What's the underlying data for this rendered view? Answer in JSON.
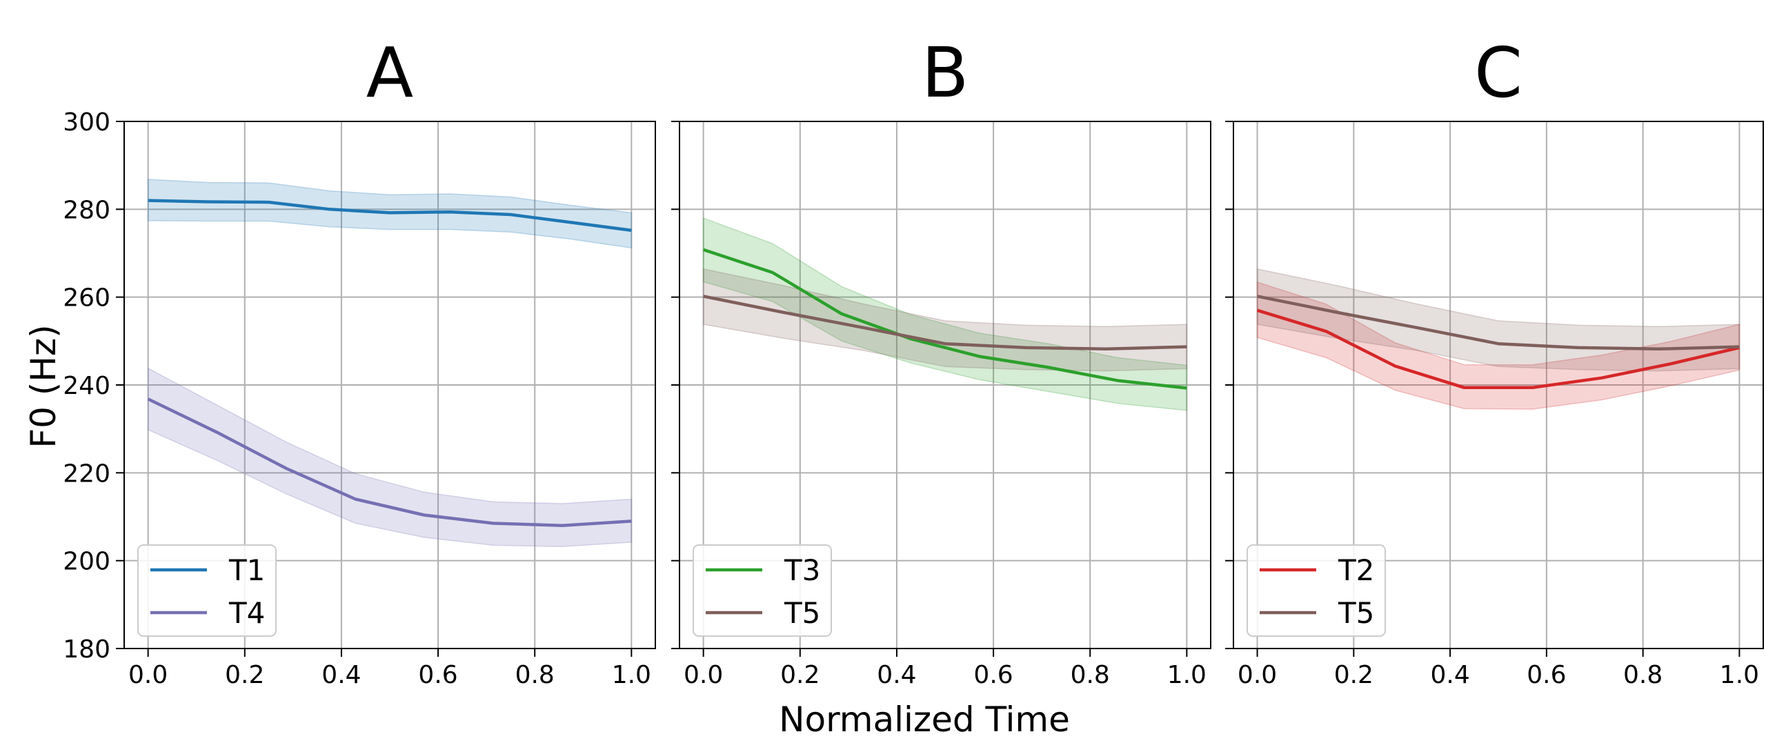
{
  "figure": {
    "xlabel": "Normalized Time",
    "ylabel": "F0 (Hz)"
  },
  "chart_data": [
    {
      "type": "line",
      "title": "A",
      "xlim": [
        0.0,
        1.0
      ],
      "ylim": [
        180,
        300
      ],
      "xticks": [
        "0.0",
        "0.2",
        "0.4",
        "0.6",
        "0.8",
        "1.0"
      ],
      "yticks": [
        "180",
        "200",
        "220",
        "240",
        "260",
        "280",
        "300"
      ],
      "grid": true,
      "legend_position": "lower-left",
      "series": [
        {
          "name": "T1",
          "color": "#1f77b4",
          "x": [
            0.0,
            0.125,
            0.25,
            0.375,
            0.5,
            0.625,
            0.75,
            0.875,
            1.0
          ],
          "y": [
            282.0,
            281.7,
            281.6,
            280.0,
            279.2,
            279.4,
            278.8,
            277.0,
            275.2
          ],
          "lower": [
            277.4,
            277.3,
            277.3,
            276.0,
            275.4,
            275.4,
            274.8,
            273.2,
            271.2
          ],
          "upper": [
            286.8,
            286.1,
            286.0,
            284.2,
            283.3,
            283.5,
            282.8,
            280.9,
            279.2
          ]
        },
        {
          "name": "T4",
          "color": "#7570b3",
          "x": [
            0.0,
            0.143,
            0.286,
            0.429,
            0.571,
            0.714,
            0.857,
            1.0
          ],
          "y": [
            236.8,
            229.2,
            221.0,
            214.0,
            210.4,
            208.5,
            208.0,
            209.0
          ],
          "lower": [
            229.8,
            222.8,
            215.2,
            208.5,
            205.3,
            203.5,
            203.2,
            204.2
          ],
          "upper": [
            243.8,
            235.4,
            227.0,
            219.8,
            215.6,
            213.4,
            213.0,
            214.0
          ]
        }
      ]
    },
    {
      "type": "line",
      "title": "B",
      "xlim": [
        0.0,
        1.0
      ],
      "ylim": [
        180,
        300
      ],
      "xticks": [
        "0.0",
        "0.2",
        "0.4",
        "0.6",
        "0.8",
        "1.0"
      ],
      "yticks": [],
      "grid": true,
      "legend_position": "lower-left",
      "series": [
        {
          "name": "T3",
          "color": "#2ca02c",
          "x": [
            0.0,
            0.143,
            0.286,
            0.429,
            0.571,
            0.714,
            0.857,
            1.0
          ],
          "y": [
            270.8,
            265.6,
            256.2,
            250.5,
            246.5,
            244.0,
            241.0,
            239.3
          ],
          "lower": [
            263.5,
            259.0,
            250.0,
            245.0,
            241.2,
            238.5,
            235.8,
            234.2
          ],
          "upper": [
            278.0,
            272.2,
            262.4,
            256.0,
            251.8,
            249.4,
            246.2,
            244.5
          ]
        },
        {
          "name": "T5",
          "color": "#7f5f5b",
          "x": [
            0.0,
            0.167,
            0.333,
            0.5,
            0.667,
            0.833,
            1.0
          ],
          "y": [
            260.2,
            256.5,
            253.0,
            249.4,
            248.5,
            248.2,
            248.7
          ],
          "lower": [
            253.8,
            250.6,
            247.8,
            244.2,
            243.5,
            243.2,
            243.7
          ],
          "upper": [
            266.4,
            262.6,
            258.4,
            254.6,
            253.6,
            253.3,
            253.8
          ]
        }
      ]
    },
    {
      "type": "line",
      "title": "C",
      "xlim": [
        0.0,
        1.0
      ],
      "ylim": [
        180,
        300
      ],
      "xticks": [
        "0.0",
        "0.2",
        "0.4",
        "0.6",
        "0.8",
        "1.0"
      ],
      "yticks": [],
      "grid": true,
      "legend_position": "lower-left",
      "series": [
        {
          "name": "T2",
          "color": "#d62728",
          "x": [
            0.0,
            0.143,
            0.286,
            0.429,
            0.571,
            0.714,
            0.857,
            1.0
          ],
          "y": [
            257.0,
            252.2,
            244.3,
            239.4,
            239.4,
            241.6,
            244.8,
            248.5
          ],
          "lower": [
            250.8,
            246.2,
            238.8,
            234.6,
            234.5,
            236.6,
            239.8,
            243.4
          ],
          "upper": [
            263.4,
            258.4,
            249.6,
            244.6,
            244.6,
            246.8,
            249.9,
            253.8
          ]
        },
        {
          "name": "T5",
          "color": "#7f5f5b",
          "x": [
            0.0,
            0.167,
            0.333,
            0.5,
            0.667,
            0.833,
            1.0
          ],
          "y": [
            260.2,
            256.5,
            253.0,
            249.4,
            248.5,
            248.2,
            248.7
          ],
          "lower": [
            253.8,
            250.6,
            247.8,
            244.2,
            243.5,
            243.2,
            243.7
          ],
          "upper": [
            266.4,
            262.6,
            258.4,
            254.6,
            253.6,
            253.3,
            253.8
          ]
        }
      ]
    }
  ]
}
